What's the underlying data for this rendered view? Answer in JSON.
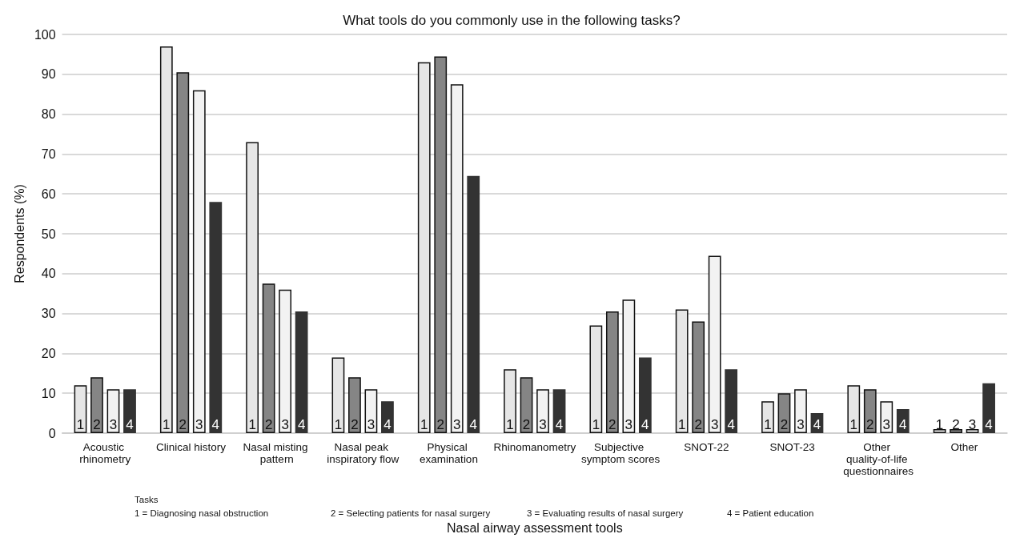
{
  "chart_data": {
    "type": "bar",
    "title": "What tools do you commonly use in the following tasks?",
    "xlabel": "Nasal airway assessment tools",
    "ylabel": "Respondents (%)",
    "categories": [
      "Acoustic rhinometry",
      "Clinical history",
      "Nasal misting pattern",
      "Nasal peak inspiratory flow",
      "Physical examination",
      "Rhinomanometry",
      "Subjective symptom scores",
      "SNOT-22",
      "SNOT-23",
      "Other quality-of-life questionnaires",
      "Other"
    ],
    "series": [
      {
        "name": "1",
        "color": "#e6e6e6",
        "values": [
          12,
          97,
          73,
          19,
          93,
          16,
          27,
          31,
          8,
          12,
          1
        ]
      },
      {
        "name": "2",
        "color": "#858585",
        "values": [
          14,
          90.5,
          37.5,
          14,
          94.5,
          14,
          30.5,
          28,
          10,
          11,
          1
        ]
      },
      {
        "name": "3",
        "color": "#f2f2f2",
        "values": [
          11,
          86,
          36,
          11,
          87.5,
          11,
          33.5,
          44.5,
          11,
          8,
          1
        ]
      },
      {
        "name": "4",
        "color": "#333333",
        "values": [
          11,
          58,
          30.5,
          8,
          64.5,
          11,
          19,
          16,
          5,
          6,
          12.5
        ]
      }
    ],
    "ylim": [
      0,
      100
    ],
    "yticks": [
      0,
      10,
      20,
      30,
      40,
      50,
      60,
      70,
      80,
      90,
      100
    ],
    "grid": "y",
    "legend": false,
    "annotations": [
      "Tasks",
      "1 = Diagnosing nasal obstruction",
      "2 = Selecting patients for nasal surgery",
      "3 = Evaluating results of nasal surgery",
      "4 = Patient education"
    ]
  }
}
